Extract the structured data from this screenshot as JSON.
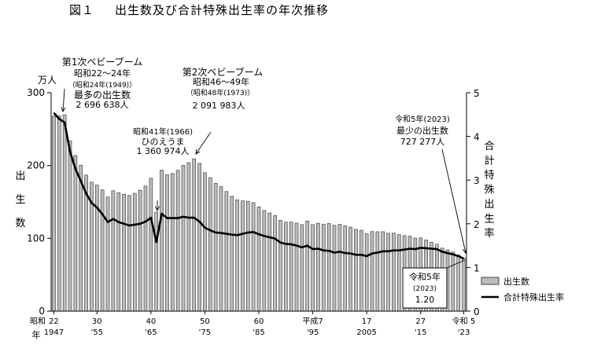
{
  "title": {
    "figure_no": "図１",
    "text": "出生数及び合計特殊出生率の年次推移"
  },
  "chart_data": {
    "type": "bar",
    "title": "出生数及び合計特殊出生率の年次推移",
    "left_axis": {
      "unit_label": "万人",
      "label_chars": [
        "出",
        "生",
        "数"
      ],
      "ticks": [
        "0",
        "100",
        "200",
        "300"
      ],
      "ylim": [
        0,
        300
      ]
    },
    "right_axis": {
      "label_chars": [
        "合",
        "計",
        "特",
        "殊",
        "出",
        "生",
        "率"
      ],
      "ticks": [
        "0",
        "1",
        "2",
        "3",
        "4",
        "5"
      ],
      "ylim": [
        0,
        5
      ]
    },
    "x_axis": {
      "era_label": "昭和",
      "year_label": "年",
      "ticks_top": [
        {
          "year": 1947,
          "label": "22"
        },
        {
          "year": 1955,
          "label": "30"
        },
        {
          "year": 1965,
          "label": "40"
        },
        {
          "year": 1975,
          "label": "50"
        },
        {
          "year": 1985,
          "label": "60"
        },
        {
          "year": 1995,
          "label": "平成7"
        },
        {
          "year": 2005,
          "label": "17"
        },
        {
          "year": 2015,
          "label": "27"
        },
        {
          "year": 2023,
          "label": "令和 5"
        }
      ],
      "ticks_bottom": [
        {
          "year": 1947,
          "label": "1947"
        },
        {
          "year": 1955,
          "label": "'55"
        },
        {
          "year": 1965,
          "label": "'65"
        },
        {
          "year": 1975,
          "label": "'75"
        },
        {
          "year": 1985,
          "label": "'85"
        },
        {
          "year": 1995,
          "label": "'95"
        },
        {
          "year": 2005,
          "label": "2005"
        },
        {
          "year": 2015,
          "label": "'15"
        },
        {
          "year": 2023,
          "label": "'23"
        }
      ]
    },
    "years": [
      1947,
      1948,
      1949,
      1950,
      1951,
      1952,
      1953,
      1954,
      1955,
      1956,
      1957,
      1958,
      1959,
      1960,
      1961,
      1962,
      1963,
      1964,
      1965,
      1966,
      1967,
      1968,
      1969,
      1970,
      1971,
      1972,
      1973,
      1974,
      1975,
      1976,
      1977,
      1978,
      1979,
      1980,
      1981,
      1982,
      1983,
      1984,
      1985,
      1986,
      1987,
      1988,
      1989,
      1990,
      1991,
      1992,
      1993,
      1994,
      1995,
      1996,
      1997,
      1998,
      1999,
      2000,
      2001,
      2002,
      2003,
      2004,
      2005,
      2006,
      2007,
      2008,
      2009,
      2010,
      2011,
      2012,
      2013,
      2014,
      2015,
      2016,
      2017,
      2018,
      2019,
      2020,
      2021,
      2022,
      2023
    ],
    "series": [
      {
        "name": "出生数",
        "type": "bar",
        "unit": "万人",
        "values": [
          267.9,
          268.2,
          269.7,
          233.8,
          213.8,
          200.5,
          186.8,
          177.0,
          173.1,
          166.5,
          156.7,
          165.3,
          162.6,
          160.6,
          158.9,
          161.8,
          166.0,
          171.7,
          182.4,
          136.1,
          193.6,
          187.2,
          189.0,
          193.4,
          200.1,
          203.9,
          209.2,
          203.0,
          190.1,
          183.3,
          175.5,
          170.9,
          164.3,
          157.7,
          152.9,
          151.5,
          150.9,
          149.0,
          143.2,
          138.3,
          134.7,
          131.4,
          124.7,
          122.2,
          122.3,
          120.9,
          118.8,
          123.8,
          118.7,
          120.7,
          119.2,
          120.3,
          117.8,
          119.1,
          117.1,
          115.4,
          112.4,
          111.1,
          106.3,
          109.3,
          109.0,
          109.1,
          107.0,
          107.1,
          105.1,
          103.7,
          103.0,
          100.4,
          100.6,
          97.7,
          94.6,
          91.8,
          86.5,
          84.1,
          81.2,
          77.1,
          72.7
        ]
      },
      {
        "name": "合計特殊出生率",
        "type": "line",
        "values": [
          4.54,
          4.4,
          4.32,
          3.65,
          3.26,
          2.98,
          2.69,
          2.48,
          2.37,
          2.22,
          2.04,
          2.11,
          2.04,
          2.0,
          1.96,
          1.98,
          2.0,
          2.05,
          2.14,
          1.58,
          2.23,
          2.13,
          2.13,
          2.13,
          2.16,
          2.14,
          2.14,
          2.05,
          1.91,
          1.85,
          1.8,
          1.79,
          1.77,
          1.75,
          1.74,
          1.77,
          1.8,
          1.81,
          1.76,
          1.72,
          1.69,
          1.66,
          1.57,
          1.54,
          1.53,
          1.5,
          1.46,
          1.5,
          1.42,
          1.43,
          1.39,
          1.38,
          1.34,
          1.36,
          1.33,
          1.32,
          1.29,
          1.29,
          1.26,
          1.32,
          1.34,
          1.37,
          1.37,
          1.39,
          1.39,
          1.41,
          1.43,
          1.42,
          1.45,
          1.44,
          1.43,
          1.42,
          1.36,
          1.33,
          1.3,
          1.26,
          1.2
        ]
      }
    ],
    "legend": {
      "position": "bottom-right",
      "items": [
        {
          "label": "出生数",
          "kind": "bar"
        },
        {
          "label": "合計特殊出生率",
          "kind": "line"
        }
      ]
    },
    "annotations": {
      "boom1": [
        "第1次ベビーブーム",
        "昭和22～24年",
        "（昭和24年(1949)）",
        "最多の出生数",
        "2 696 638人"
      ],
      "hinoeuma": [
        "昭和41年(1966)",
        "ひのえうま",
        "1 360 974人"
      ],
      "boom2": [
        "第2次ベビーブーム",
        "昭和46～49年",
        "（昭和48年(1973)）",
        "2 091 983人"
      ],
      "min2023": [
        "令和5年(2023)",
        "最少の出生数",
        "727 277人"
      ],
      "rate2023": [
        "令和5年",
        "(2023)",
        "1.20"
      ]
    },
    "colors": {
      "bar_fill": "#bcbcbc",
      "bar_stroke": "#444444",
      "line": "#000000"
    }
  }
}
